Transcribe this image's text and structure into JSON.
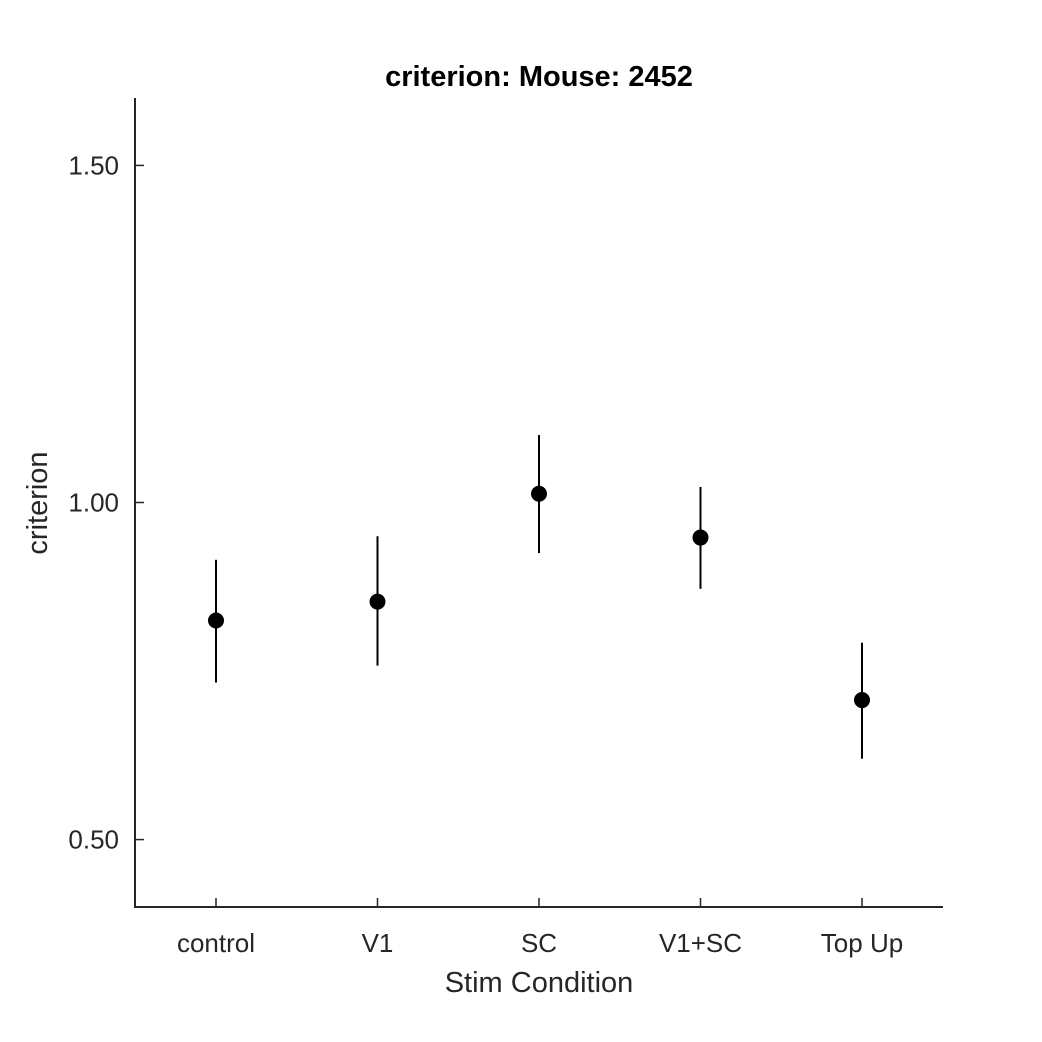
{
  "chart_data": {
    "type": "scatter",
    "title": "criterion: Mouse: 2452",
    "xlabel": "Stim Condition",
    "ylabel": "criterion",
    "categories": [
      "control",
      "V1",
      "SC",
      "V1+SC",
      "Top Up"
    ],
    "ylim": [
      0.4,
      1.6
    ],
    "yticks": [
      0.5,
      1.0,
      1.5
    ],
    "ytick_labels": [
      "0.50",
      "1.00",
      "1.50"
    ],
    "series": [
      {
        "values": [
          0.825,
          0.853,
          1.013,
          0.948,
          0.707
        ],
        "err_low": [
          0.733,
          0.758,
          0.925,
          0.872,
          0.62
        ],
        "err_high": [
          0.915,
          0.95,
          1.1,
          1.023,
          0.792
        ]
      }
    ],
    "marker_color": "#000000",
    "grid": false,
    "legend": "none"
  }
}
